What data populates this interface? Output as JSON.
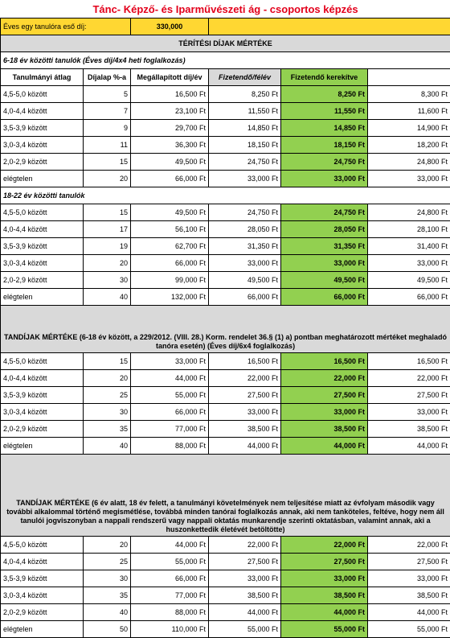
{
  "title": "Tánc- Képző- és Iparművészeti ág - csoportos képzés",
  "annual_fee_label": "Éves egy tanulóra eső díj:",
  "annual_fee_value": "330,000",
  "section1_title": "TÉRÍTÉSI DÍJAK MÉRTÉKE",
  "sub1_title": "6-18 év közötti tanulók (Éves díj/4x4 heti foglalkozás)",
  "headers": {
    "avg": "Tanulmányi átlag",
    "pct": "Díjalap %-a",
    "set": "Megállapított díj/év",
    "sem": "Fizetendő/félév",
    "rounded": "Fizetendő kerekítve"
  },
  "rows1": [
    {
      "avg": "4,5-5,0 között",
      "pct": "5",
      "set": "16,500 Ft",
      "sem": "8,250 Ft",
      "rnd": "8,250 Ft",
      "extra": "8,300 Ft"
    },
    {
      "avg": "4,0-4,4 között",
      "pct": "7",
      "set": "23,100 Ft",
      "sem": "11,550 Ft",
      "rnd": "11,550 Ft",
      "extra": "11,600 Ft"
    },
    {
      "avg": "3,5-3,9 között",
      "pct": "9",
      "set": "29,700 Ft",
      "sem": "14,850 Ft",
      "rnd": "14,850 Ft",
      "extra": "14,900 Ft"
    },
    {
      "avg": "3,0-3,4 között",
      "pct": "11",
      "set": "36,300 Ft",
      "sem": "18,150 Ft",
      "rnd": "18,150 Ft",
      "extra": "18,200 Ft"
    },
    {
      "avg": "2,0-2,9 között",
      "pct": "15",
      "set": "49,500 Ft",
      "sem": "24,750 Ft",
      "rnd": "24,750 Ft",
      "extra": "24,800 Ft"
    },
    {
      "avg": "elégtelen",
      "pct": "20",
      "set": "66,000 Ft",
      "sem": "33,000 Ft",
      "rnd": "33,000 Ft",
      "extra": "33,000 Ft"
    }
  ],
  "sub2_title": "18-22 év közötti tanulók",
  "rows2": [
    {
      "avg": "4,5-5,0 között",
      "pct": "15",
      "set": "49,500 Ft",
      "sem": "24,750 Ft",
      "rnd": "24,750 Ft",
      "extra": "24,800 Ft"
    },
    {
      "avg": "4,0-4,4 között",
      "pct": "17",
      "set": "56,100 Ft",
      "sem": "28,050 Ft",
      "rnd": "28,050 Ft",
      "extra": "28,100 Ft"
    },
    {
      "avg": "3,5-3,9 között",
      "pct": "19",
      "set": "62,700 Ft",
      "sem": "31,350 Ft",
      "rnd": "31,350 Ft",
      "extra": "31,400 Ft"
    },
    {
      "avg": "3,0-3,4 között",
      "pct": "20",
      "set": "66,000 Ft",
      "sem": "33,000 Ft",
      "rnd": "33,000 Ft",
      "extra": "33,000 Ft"
    },
    {
      "avg": "2,0-2,9 között",
      "pct": "30",
      "set": "99,000 Ft",
      "sem": "49,500 Ft",
      "rnd": "49,500 Ft",
      "extra": "49,500 Ft"
    },
    {
      "avg": "elégtelen",
      "pct": "40",
      "set": "132,000 Ft",
      "sem": "66,000 Ft",
      "rnd": "66,000 Ft",
      "extra": "66,000 Ft"
    }
  ],
  "section2_title": "TANDÍJAK MÉRTÉKE (6-18 év között, a 229/2012. (VIII. 28.) Korm. rendelet 36.§ (1) a) pontban meghatározott mértéket meghaladó tanóra esetén) (Éves díj/6x4 foglalkozás)",
  "rows3": [
    {
      "avg": "4,5-5,0 között",
      "pct": "15",
      "set": "33,000 Ft",
      "sem": "16,500 Ft",
      "rnd": "16,500 Ft",
      "extra": "16,500 Ft"
    },
    {
      "avg": "4,0-4,4 között",
      "pct": "20",
      "set": "44,000 Ft",
      "sem": "22,000 Ft",
      "rnd": "22,000 Ft",
      "extra": "22,000 Ft"
    },
    {
      "avg": "3,5-3,9 között",
      "pct": "25",
      "set": "55,000 Ft",
      "sem": "27,500 Ft",
      "rnd": "27,500 Ft",
      "extra": "27,500 Ft"
    },
    {
      "avg": "3,0-3,4 között",
      "pct": "30",
      "set": "66,000 Ft",
      "sem": "33,000 Ft",
      "rnd": "33,000 Ft",
      "extra": "33,000 Ft"
    },
    {
      "avg": "2,0-2,9 között",
      "pct": "35",
      "set": "77,000 Ft",
      "sem": "38,500 Ft",
      "rnd": "38,500 Ft",
      "extra": "38,500 Ft"
    },
    {
      "avg": "elégtelen",
      "pct": "40",
      "set": "88,000 Ft",
      "sem": "44,000 Ft",
      "rnd": "44,000 Ft",
      "extra": "44,000 Ft"
    }
  ],
  "section3_title": "TANDÍJAK MÉRTÉKE (6 év alatt, 18 év felett, a tanulmányi követelmények nem teljesítése miatt az évfolyam második vagy további alkalommal történő megismétlése, továbbá minden tanórai foglalkozás annak, aki nem tanköteles, feltéve, hogy nem áll tanulói jogviszonyban a nappali rendszerű vagy nappali oktatás munkarendje szerinti oktatásban, valamint annak, aki a huszonkettedik életévét betöltötte)",
  "rows4": [
    {
      "avg": "4,5-5,0 között",
      "pct": "20",
      "set": "44,000 Ft",
      "sem": "22,000 Ft",
      "rnd": "22,000 Ft",
      "extra": "22,000 Ft"
    },
    {
      "avg": "4,0-4,4 között",
      "pct": "25",
      "set": "55,000 Ft",
      "sem": "27,500 Ft",
      "rnd": "27,500 Ft",
      "extra": "27,500 Ft"
    },
    {
      "avg": "3,5-3,9 között",
      "pct": "30",
      "set": "66,000 Ft",
      "sem": "33,000 Ft",
      "rnd": "33,000 Ft",
      "extra": "33,000 Ft"
    },
    {
      "avg": "3,0-3,4 között",
      "pct": "35",
      "set": "77,000 Ft",
      "sem": "38,500 Ft",
      "rnd": "38,500 Ft",
      "extra": "38,500 Ft"
    },
    {
      "avg": "2,0-2,9 között",
      "pct": "40",
      "set": "88,000 Ft",
      "sem": "44,000 Ft",
      "rnd": "44,000 Ft",
      "extra": "44,000 Ft"
    },
    {
      "avg": "elégtelen",
      "pct": "50",
      "set": "110,000 Ft",
      "sem": "55,000 Ft",
      "rnd": "55,000 Ft",
      "extra": "55,000 Ft"
    }
  ]
}
